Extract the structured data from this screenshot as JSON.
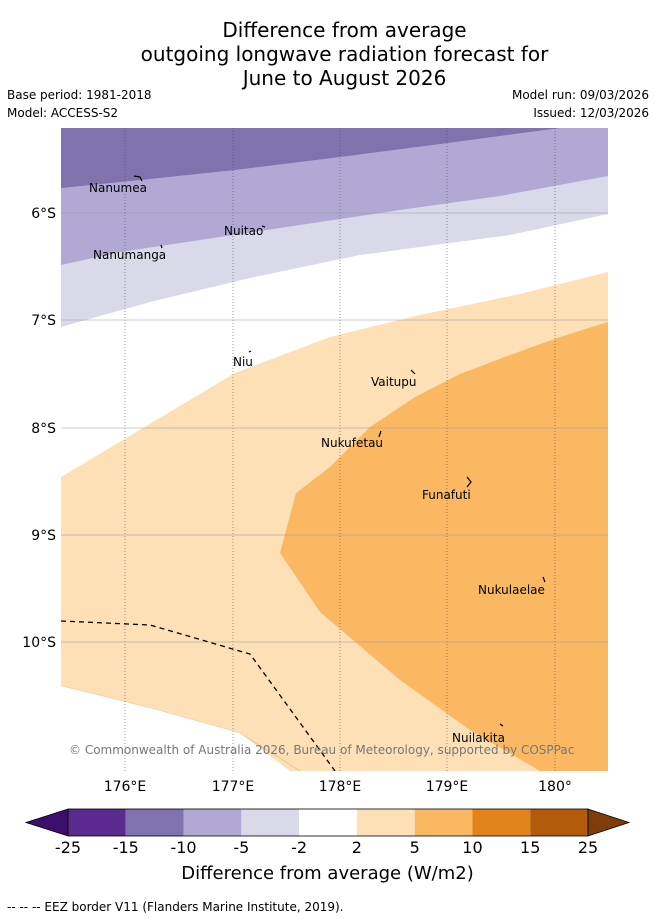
{
  "title": {
    "line1": "Difference from average",
    "line2": "outgoing longwave radiation forecast for",
    "line3": "June to August 2026"
  },
  "meta": {
    "base_period": "Base period: 1981-2018",
    "model": "Model: ACCESS-S2",
    "model_run": "Model run: 09/03/2026",
    "issued": "Issued: 12/03/2026"
  },
  "map": {
    "lon_labels": [
      "176°E",
      "177°E",
      "178°E",
      "179°E",
      "180°"
    ],
    "lat_labels": [
      "6°S",
      "7°S",
      "8°S",
      "9°S",
      "10°S"
    ],
    "places": [
      {
        "name": "Nanumea"
      },
      {
        "name": "Nuitao"
      },
      {
        "name": "Nanumanga"
      },
      {
        "name": "Niu"
      },
      {
        "name": "Vaitupu"
      },
      {
        "name": "Nukufetau"
      },
      {
        "name": "Funafuti"
      },
      {
        "name": "Nukulaelae"
      },
      {
        "name": "Nuilakita"
      }
    ],
    "copyright": "© Commonwealth of Australia 2026, Bureau of Meteorology, supported by COSPPac"
  },
  "colorbar": {
    "ticks": [
      "-25",
      "-15",
      "-10",
      "-5",
      "-2",
      "2",
      "5",
      "10",
      "15",
      "25"
    ],
    "colors": [
      "#5b2a8e",
      "#7f72ad",
      "#b1a9d3",
      "#d9d9ea",
      "#ffffff",
      "#fde0b6",
      "#fbb862",
      "#e4831a",
      "#b45a0b"
    ],
    "under_color": "#3b0f6b",
    "over_color": "#7f3d0e",
    "title": "Difference from average (W/m2)"
  },
  "footer": "-- -- -- EEZ border V11 (Flanders Marine Institute, 2019)."
}
